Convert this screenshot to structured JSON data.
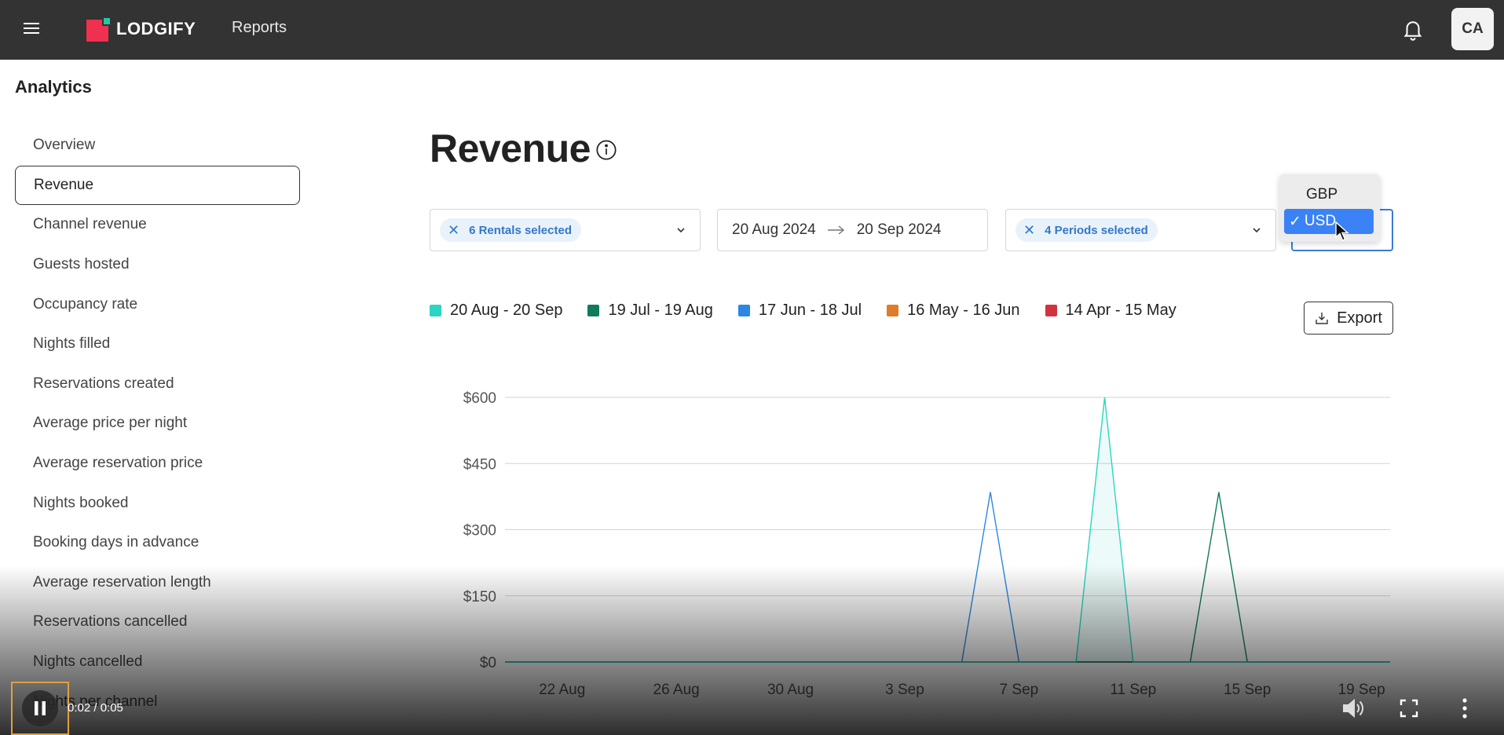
{
  "header": {
    "brand": "LODGIFY",
    "nav": "Reports",
    "avatar_initials": "CA",
    "bar_color": "#333333"
  },
  "sidebar": {
    "title": "Analytics",
    "items": [
      {
        "label": "Overview"
      },
      {
        "label": "Revenue",
        "active": true
      },
      {
        "label": "Channel revenue"
      },
      {
        "label": "Guests hosted"
      },
      {
        "label": "Occupancy rate"
      },
      {
        "label": "Nights filled"
      },
      {
        "label": "Reservations created"
      },
      {
        "label": "Average price per night"
      },
      {
        "label": "Average reservation price"
      },
      {
        "label": "Nights booked"
      },
      {
        "label": "Booking days in advance"
      },
      {
        "label": "Average reservation length"
      },
      {
        "label": "Reservations cancelled"
      },
      {
        "label": "Nights cancelled"
      },
      {
        "label": "Nights per channel"
      }
    ]
  },
  "main": {
    "title": "Revenue",
    "filters": {
      "rentals_chip": "6 Rentals selected",
      "date_from": "20 Aug 2024",
      "date_to": "20 Sep 2024",
      "periods_chip": "4 Periods selected"
    },
    "currency_dropdown": {
      "options": [
        "GBP",
        "USD"
      ],
      "selected": "USD"
    },
    "export_label": "Export"
  },
  "chart_data": {
    "type": "line",
    "x": [
      "20 Aug",
      "21 Aug",
      "22 Aug",
      "23 Aug",
      "24 Aug",
      "25 Aug",
      "26 Aug",
      "27 Aug",
      "28 Aug",
      "29 Aug",
      "30 Aug",
      "31 Aug",
      "1 Sep",
      "2 Sep",
      "3 Sep",
      "4 Sep",
      "5 Sep",
      "6 Sep",
      "7 Sep",
      "8 Sep",
      "9 Sep",
      "10 Sep",
      "11 Sep",
      "12 Sep",
      "13 Sep",
      "14 Sep",
      "15 Sep",
      "16 Sep",
      "17 Sep",
      "18 Sep",
      "19 Sep",
      "20 Sep"
    ],
    "tick_labels": [
      "22 Aug",
      "26 Aug",
      "30 Aug",
      "3 Sep",
      "7 Sep",
      "11 Sep",
      "15 Sep",
      "19 Sep"
    ],
    "y_ticks": [
      "$0",
      "$150",
      "$300",
      "$450",
      "$600"
    ],
    "ylim": [
      0,
      600
    ],
    "grid": true,
    "series": [
      {
        "name": "20 Aug - 20 Sep",
        "color": "#2dd4bf",
        "fill": true,
        "values": [
          0,
          0,
          0,
          0,
          0,
          0,
          0,
          0,
          0,
          0,
          0,
          0,
          0,
          0,
          0,
          0,
          0,
          0,
          0,
          0,
          0,
          600,
          0,
          0,
          0,
          0,
          0,
          0,
          0,
          0,
          0,
          0
        ]
      },
      {
        "name": "19 Jul - 19 Aug",
        "color": "#0f7a5c",
        "values": [
          0,
          0,
          0,
          0,
          0,
          0,
          0,
          0,
          0,
          0,
          0,
          0,
          0,
          0,
          0,
          0,
          0,
          0,
          0,
          0,
          0,
          0,
          0,
          0,
          0,
          385,
          0,
          0,
          0,
          0,
          0,
          0
        ]
      },
      {
        "name": "17 Jun - 18 Jul",
        "color": "#2b87e3",
        "values": [
          0,
          0,
          0,
          0,
          0,
          0,
          0,
          0,
          0,
          0,
          0,
          0,
          0,
          0,
          0,
          0,
          0,
          385,
          0,
          0,
          0,
          0,
          0,
          0,
          0,
          0,
          0,
          0,
          0,
          0,
          0,
          0
        ]
      },
      {
        "name": "16 May - 16 Jun",
        "color": "#e07b2a",
        "values": [
          0,
          0,
          0,
          0,
          0,
          0,
          0,
          0,
          0,
          0,
          0,
          0,
          0,
          0,
          0,
          0,
          0,
          0,
          0,
          0,
          0,
          0,
          0,
          0,
          0,
          0,
          0,
          0,
          0,
          0,
          0,
          0
        ]
      },
      {
        "name": "14 Apr - 15 May",
        "color": "#d0353f",
        "values": [
          0,
          0,
          0,
          0,
          0,
          0,
          0,
          0,
          0,
          0,
          0,
          0,
          0,
          0,
          0,
          0,
          0,
          0,
          0,
          0,
          0,
          0,
          0,
          0,
          0,
          0,
          0,
          0,
          0,
          0,
          0,
          0
        ]
      }
    ]
  },
  "video": {
    "time": "0:02 / 0:05"
  }
}
